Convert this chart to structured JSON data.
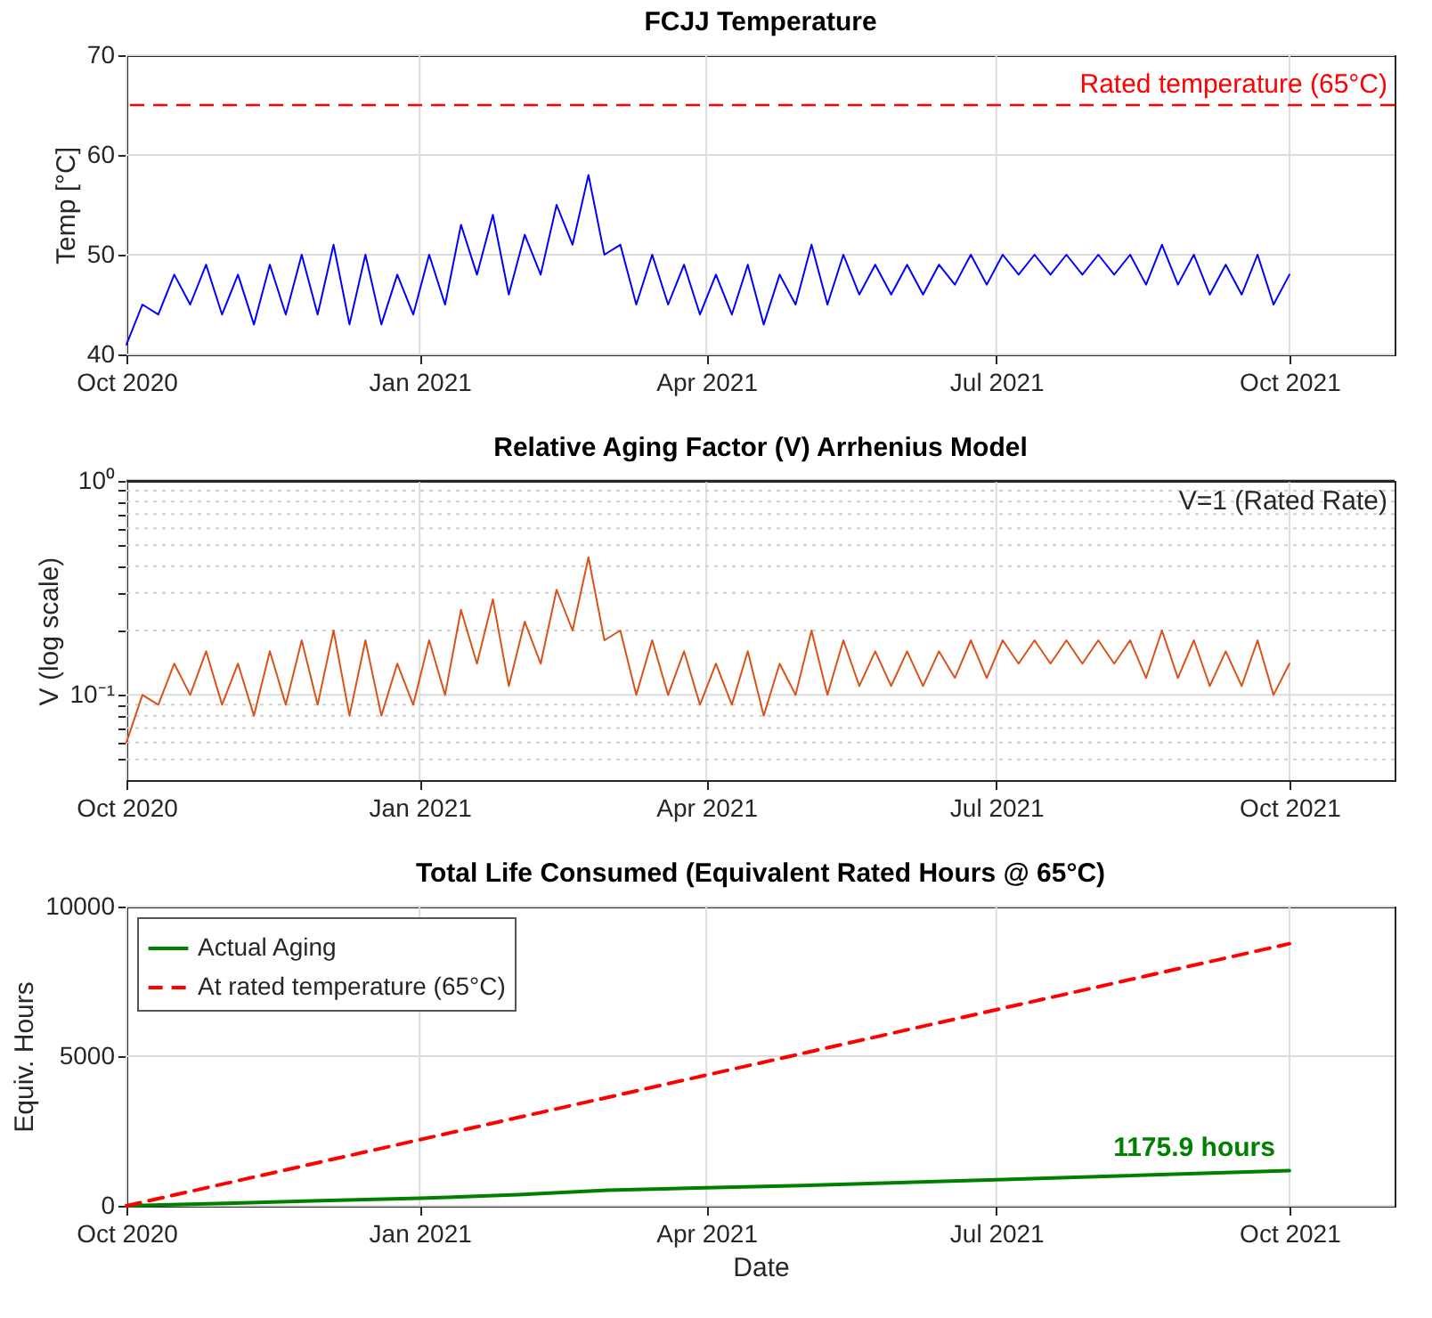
{
  "chart_data": [
    {
      "type": "line",
      "title": "FCJJ Temperature",
      "ylabel": "Temp [°C]",
      "xlim": [
        "2020-10-01",
        "2021-11-03"
      ],
      "ylim": [
        40,
        70
      ],
      "yticks": [
        40,
        50,
        60,
        70
      ],
      "xticks": [
        {
          "value": "2020-10-01",
          "label": "Oct 2020"
        },
        {
          "value": "2021-01-01",
          "label": "Jan 2021"
        },
        {
          "value": "2021-04-01",
          "label": "Apr 2021"
        },
        {
          "value": "2021-07-01",
          "label": "Jul 2021"
        },
        {
          "value": "2021-10-01",
          "label": "Oct 2021"
        }
      ],
      "grid": true,
      "x": [
        "2020-10-01",
        "2020-10-06",
        "2020-10-11",
        "2020-10-16",
        "2020-10-21",
        "2020-10-26",
        "2020-10-31",
        "2020-11-05",
        "2020-11-10",
        "2020-11-15",
        "2020-11-20",
        "2020-11-25",
        "2020-11-30",
        "2020-12-05",
        "2020-12-10",
        "2020-12-15",
        "2020-12-20",
        "2020-12-25",
        "2020-12-30",
        "2021-01-04",
        "2021-01-09",
        "2021-01-14",
        "2021-01-19",
        "2021-01-24",
        "2021-01-29",
        "2021-02-03",
        "2021-02-08",
        "2021-02-13",
        "2021-02-18",
        "2021-02-23",
        "2021-02-28",
        "2021-03-05",
        "2021-03-10",
        "2021-03-15",
        "2021-03-20",
        "2021-03-25",
        "2021-03-30",
        "2021-04-04",
        "2021-04-09",
        "2021-04-14",
        "2021-04-19",
        "2021-04-24",
        "2021-04-29",
        "2021-05-04",
        "2021-05-09",
        "2021-05-14",
        "2021-05-19",
        "2021-05-24",
        "2021-05-29",
        "2021-06-03",
        "2021-06-08",
        "2021-06-13",
        "2021-06-18",
        "2021-06-23",
        "2021-06-28",
        "2021-07-03",
        "2021-07-08",
        "2021-07-13",
        "2021-07-18",
        "2021-07-23",
        "2021-07-28",
        "2021-08-02",
        "2021-08-07",
        "2021-08-12",
        "2021-08-17",
        "2021-08-22",
        "2021-08-27",
        "2021-09-01",
        "2021-09-06",
        "2021-09-11",
        "2021-09-16",
        "2021-09-21",
        "2021-09-26",
        "2021-10-01"
      ],
      "series": [
        {
          "color": "#0000ff",
          "values": [
            41,
            45,
            44,
            48,
            45,
            49,
            44,
            48,
            43,
            49,
            44,
            50,
            44,
            51,
            43,
            50,
            43,
            48,
            44,
            50,
            45,
            53,
            48,
            54,
            46,
            52,
            48,
            55,
            51,
            58,
            50,
            51,
            45,
            50,
            45,
            49,
            44,
            48,
            44,
            49,
            43,
            48,
            45,
            51,
            45,
            50,
            46,
            49,
            46,
            49,
            46,
            49,
            47,
            50,
            47,
            50,
            48,
            50,
            48,
            50,
            48,
            50,
            48,
            50,
            47,
            51,
            47,
            50,
            46,
            49,
            46,
            50,
            45,
            48
          ]
        }
      ],
      "ref_lines": [
        {
          "axis": "y",
          "value": 65,
          "label": "Rated temperature (65°C)",
          "color": "#ff0000",
          "line_style": "dashed"
        }
      ]
    },
    {
      "type": "line",
      "title": "Relative Aging Factor (V) Arrhenius Model",
      "ylabel": "V (log scale)",
      "log": true,
      "xlim": [
        "2020-10-01",
        "2021-11-03"
      ],
      "ylim": [
        0.04,
        1
      ],
      "yticks": [
        {
          "value": 0.05,
          "label": null
        },
        {
          "value": 0.06,
          "label": null
        },
        {
          "value": 0.07,
          "label": null
        },
        {
          "value": 0.08,
          "label": null
        },
        {
          "value": 0.09,
          "label": null
        },
        {
          "value": 0.1,
          "label": "10⁻¹"
        },
        {
          "value": 0.2,
          "label": null
        },
        {
          "value": 0.3,
          "label": null
        },
        {
          "value": 0.4,
          "label": null
        },
        {
          "value": 0.5,
          "label": null
        },
        {
          "value": 0.6,
          "label": null
        },
        {
          "value": 0.7,
          "label": null
        },
        {
          "value": 0.8,
          "label": null
        },
        {
          "value": 0.9,
          "label": null
        },
        {
          "value": 1,
          "label": "10⁰"
        }
      ],
      "xticks": [
        {
          "value": "2020-10-01",
          "label": "Oct 2020"
        },
        {
          "value": "2021-01-01",
          "label": "Jan 2021"
        },
        {
          "value": "2021-04-01",
          "label": "Apr 2021"
        },
        {
          "value": "2021-07-01",
          "label": "Jul 2021"
        },
        {
          "value": "2021-10-01",
          "label": "Oct 2021"
        }
      ],
      "grid": true,
      "x": [
        "2020-10-01",
        "2020-10-06",
        "2020-10-11",
        "2020-10-16",
        "2020-10-21",
        "2020-10-26",
        "2020-10-31",
        "2020-11-05",
        "2020-11-10",
        "2020-11-15",
        "2020-11-20",
        "2020-11-25",
        "2020-11-30",
        "2020-12-05",
        "2020-12-10",
        "2020-12-15",
        "2020-12-20",
        "2020-12-25",
        "2020-12-30",
        "2021-01-04",
        "2021-01-09",
        "2021-01-14",
        "2021-01-19",
        "2021-01-24",
        "2021-01-29",
        "2021-02-03",
        "2021-02-08",
        "2021-02-13",
        "2021-02-18",
        "2021-02-23",
        "2021-02-28",
        "2021-03-05",
        "2021-03-10",
        "2021-03-15",
        "2021-03-20",
        "2021-03-25",
        "2021-03-30",
        "2021-04-04",
        "2021-04-09",
        "2021-04-14",
        "2021-04-19",
        "2021-04-24",
        "2021-04-29",
        "2021-05-04",
        "2021-05-09",
        "2021-05-14",
        "2021-05-19",
        "2021-05-24",
        "2021-05-29",
        "2021-06-03",
        "2021-06-08",
        "2021-06-13",
        "2021-06-18",
        "2021-06-23",
        "2021-06-28",
        "2021-07-03",
        "2021-07-08",
        "2021-07-13",
        "2021-07-18",
        "2021-07-23",
        "2021-07-28",
        "2021-08-02",
        "2021-08-07",
        "2021-08-12",
        "2021-08-17",
        "2021-08-22",
        "2021-08-27",
        "2021-09-01",
        "2021-09-06",
        "2021-09-11",
        "2021-09-16",
        "2021-09-21",
        "2021-09-26",
        "2021-10-01"
      ],
      "series": [
        {
          "color": "#d95319",
          "values": [
            0.06,
            0.1,
            0.09,
            0.14,
            0.1,
            0.16,
            0.09,
            0.14,
            0.08,
            0.16,
            0.09,
            0.18,
            0.09,
            0.2,
            0.08,
            0.18,
            0.08,
            0.14,
            0.09,
            0.18,
            0.1,
            0.25,
            0.14,
            0.28,
            0.11,
            0.22,
            0.14,
            0.31,
            0.2,
            0.44,
            0.18,
            0.2,
            0.1,
            0.18,
            0.1,
            0.16,
            0.09,
            0.14,
            0.09,
            0.16,
            0.08,
            0.14,
            0.1,
            0.2,
            0.1,
            0.18,
            0.11,
            0.16,
            0.11,
            0.16,
            0.11,
            0.16,
            0.12,
            0.18,
            0.12,
            0.18,
            0.14,
            0.18,
            0.14,
            0.18,
            0.14,
            0.18,
            0.14,
            0.18,
            0.12,
            0.2,
            0.12,
            0.18,
            0.11,
            0.16,
            0.11,
            0.18,
            0.1,
            0.14
          ]
        }
      ],
      "ref_lines": [
        {
          "axis": "y",
          "value": 1,
          "label": "V=1 (Rated Rate)",
          "color": "#262626"
        }
      ]
    },
    {
      "type": "line",
      "title": "Total Life Consumed (Equivalent Rated Hours @ 65°C)",
      "xlabel": "Date",
      "ylabel": "Equiv. Hours",
      "xlim": [
        "2020-10-01",
        "2021-11-03"
      ],
      "ylim": [
        0,
        10000
      ],
      "yticks": [
        0,
        5000,
        10000
      ],
      "xticks": [
        {
          "value": "2020-10-01",
          "label": "Oct 2020"
        },
        {
          "value": "2021-01-01",
          "label": "Jan 2021"
        },
        {
          "value": "2021-04-01",
          "label": "Apr 2021"
        },
        {
          "value": "2021-07-01",
          "label": "Jul 2021"
        },
        {
          "value": "2021-10-01",
          "label": "Oct 2021"
        }
      ],
      "grid": true,
      "legend": "top left",
      "series": [
        {
          "name": "Actual Aging",
          "color": "#008000",
          "line_style": "solid",
          "x": [
            "2020-10-01",
            "2020-11-01",
            "2020-12-01",
            "2021-01-01",
            "2021-02-01",
            "2021-03-01",
            "2021-04-01",
            "2021-05-01",
            "2021-07-01",
            "2021-10-01"
          ],
          "values": [
            0,
            80,
            170,
            250,
            370,
            520,
            600,
            680,
            870,
            1175.9
          ]
        },
        {
          "name": "At rated temperature (65°C)",
          "color": "#ff0000",
          "line_style": "dashed",
          "x": [
            "2020-10-01",
            "2021-10-01"
          ],
          "values": [
            0,
            8760
          ]
        }
      ],
      "annotations": [
        {
          "text": "1175.9 hours",
          "x": "2021-10-01",
          "y": 1175.9
        }
      ]
    }
  ]
}
